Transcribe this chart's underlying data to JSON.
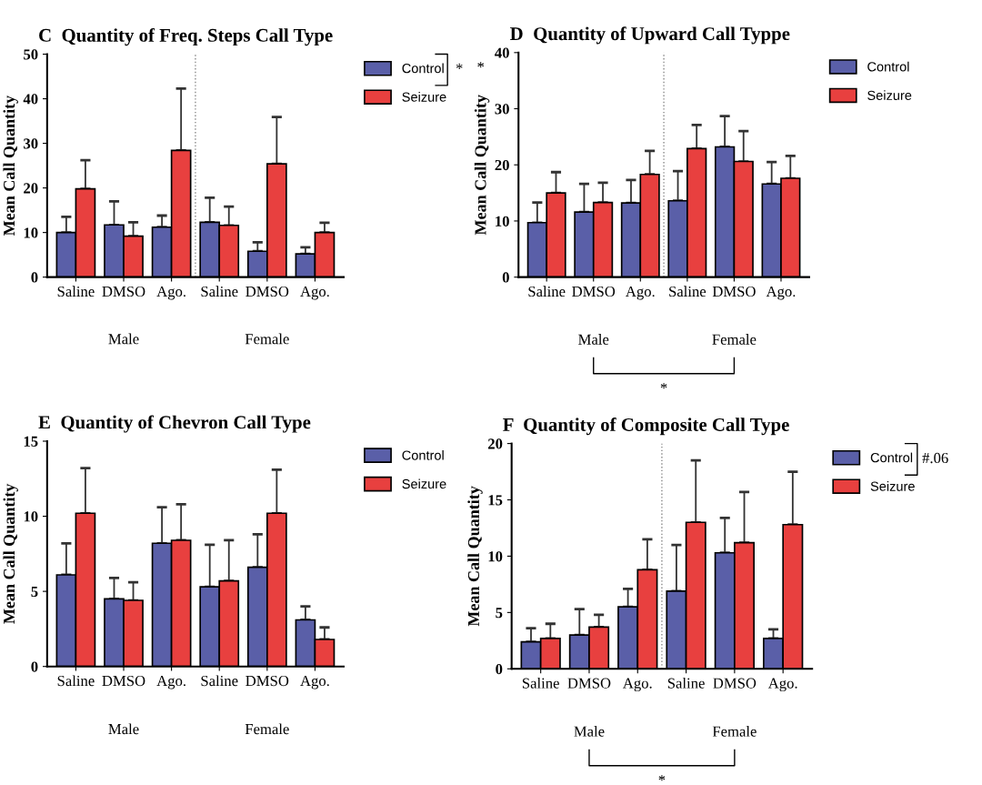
{
  "chart_data": [
    {
      "type": "bar",
      "title": "C  Quantity of Freq. Steps Call Type",
      "ylabel": "Mean Call Quantity",
      "categories": [
        "Saline",
        "DMSO",
        "Ago.",
        "Saline",
        "DMSO",
        "Ago."
      ],
      "series": [
        {
          "name": "Control",
          "color": "#5a5fa8",
          "values": [
            10,
            11.7,
            11.2,
            12.3,
            5.8,
            5.2
          ],
          "errors": [
            [
              10,
              13.5
            ],
            [
              11.7,
              17
            ],
            [
              11.2,
              13.8
            ],
            [
              12.3,
              17.8
            ],
            [
              5.8,
              7.8
            ],
            [
              5.2,
              6.7
            ]
          ]
        },
        {
          "name": "Seizure",
          "color": "#e8403f",
          "values": [
            19.8,
            9.2,
            28.4,
            11.6,
            25.4,
            10
          ],
          "errors": [
            [
              19.8,
              26.2
            ],
            [
              9.2,
              12.3
            ],
            [
              28.4,
              42.3
            ],
            [
              11.6,
              15.8
            ],
            [
              25.4,
              35.9
            ],
            [
              10,
              12.2
            ]
          ]
        }
      ],
      "ylim": [
        0,
        50
      ],
      "yticks": [
        0,
        10,
        20,
        30,
        40,
        50
      ],
      "legend": "top right",
      "grid": false,
      "annotations": [
        "Male",
        "Female",
        "*"
      ]
    },
    {
      "type": "bar",
      "title": "D  Quantity of Upward Call Typpe",
      "ylabel": "Mean Call Quantity",
      "categories": [
        "Saline",
        "DMSO",
        "Ago.",
        "Saline",
        "DMSO",
        "Ago."
      ],
      "series": [
        {
          "name": "Control",
          "color": "#5a5fa8",
          "values": [
            9.7,
            11.6,
            13.2,
            13.6,
            23.2,
            16.6
          ],
          "errors": [
            [
              9.7,
              13.3
            ],
            [
              11.6,
              16.6
            ],
            [
              13.2,
              17.3
            ],
            [
              13.6,
              18.9
            ],
            [
              23.2,
              28.7
            ],
            [
              16.6,
              20.5
            ]
          ]
        },
        {
          "name": "Seizure",
          "color": "#e8403f",
          "values": [
            15,
            13.3,
            18.3,
            22.9,
            20.6,
            17.6
          ],
          "errors": [
            [
              15,
              18.7
            ],
            [
              13.3,
              16.8
            ],
            [
              18.3,
              22.5
            ],
            [
              22.9,
              27.1
            ],
            [
              20.6,
              26
            ],
            [
              17.6,
              21.6
            ]
          ]
        }
      ],
      "ylim": [
        0,
        40
      ],
      "yticks": [
        0,
        10,
        20,
        30,
        40
      ],
      "legend": "top right",
      "grid": false,
      "annotations": [
        "Male",
        "Female",
        "*",
        "*"
      ]
    },
    {
      "type": "bar",
      "title": "E  Quantity of Chevron Call Type",
      "ylabel": "Mean Call Quantity",
      "categories": [
        "Saline",
        "DMSO",
        "Ago.",
        "Saline",
        "DMSO",
        "Ago."
      ],
      "series": [
        {
          "name": "Control",
          "color": "#5a5fa8",
          "values": [
            6.1,
            4.5,
            8.2,
            5.3,
            6.6,
            3.1
          ],
          "errors": [
            [
              6.1,
              8.2
            ],
            [
              4.5,
              5.9
            ],
            [
              8.2,
              10.6
            ],
            [
              5.3,
              8.1
            ],
            [
              6.6,
              8.8
            ],
            [
              3.1,
              4.0
            ]
          ]
        },
        {
          "name": "Seizure",
          "color": "#e8403f",
          "values": [
            10.2,
            4.4,
            8.4,
            5.7,
            10.2,
            1.8
          ],
          "errors": [
            [
              10.2,
              13.2
            ],
            [
              4.4,
              5.6
            ],
            [
              8.4,
              10.8
            ],
            [
              5.7,
              8.4
            ],
            [
              10.2,
              13.1
            ],
            [
              1.8,
              2.6
            ]
          ]
        }
      ],
      "ylim": [
        0,
        15
      ],
      "yticks": [
        0,
        5,
        10,
        15
      ],
      "legend": "top right",
      "grid": false,
      "annotations": [
        "Male",
        "Female"
      ]
    },
    {
      "type": "bar",
      "title": "F  Quantity of Composite Call Type",
      "ylabel": "Mean Call Quantity",
      "categories": [
        "Saline",
        "DMSO",
        "Ago.",
        "Saline",
        "DMSO",
        "Ago."
      ],
      "series": [
        {
          "name": "Control",
          "color": "#5a5fa8",
          "values": [
            2.4,
            3.0,
            5.5,
            6.9,
            10.3,
            2.7
          ],
          "errors": [
            [
              2.4,
              3.6
            ],
            [
              3.0,
              5.3
            ],
            [
              5.5,
              7.1
            ],
            [
              6.9,
              11
            ],
            [
              10.3,
              13.4
            ],
            [
              2.7,
              3.5
            ]
          ]
        },
        {
          "name": "Seizure",
          "color": "#e8403f",
          "values": [
            2.7,
            3.7,
            8.8,
            13,
            11.2,
            12.8
          ],
          "errors": [
            [
              2.7,
              4.0
            ],
            [
              3.7,
              4.8
            ],
            [
              8.8,
              11.5
            ],
            [
              13,
              18.5
            ],
            [
              11.2,
              15.7
            ],
            [
              12.8,
              17.5
            ]
          ]
        }
      ],
      "ylim": [
        0,
        20
      ],
      "yticks": [
        0,
        5,
        10,
        15,
        20
      ],
      "legend": "top right",
      "grid": false,
      "annotations": [
        "Male",
        "Female",
        "*",
        "#.06"
      ]
    }
  ]
}
